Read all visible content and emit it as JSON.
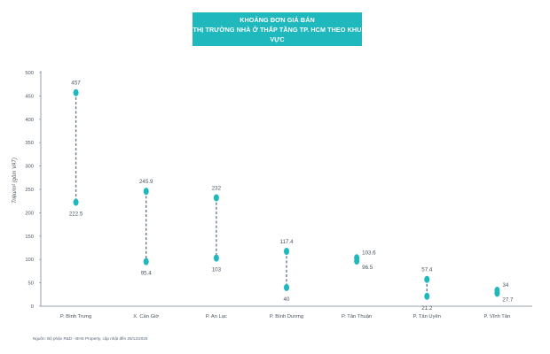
{
  "chart_data": {
    "type": "range-dot",
    "title": "KHOẢNG ĐƠN GIÁ BÁN",
    "subtitle": "THỊ TRƯỜNG NHÀ Ở THẤP TẦNG TP. HCM THEO KHU VỰC",
    "ylabel": "Triệu/m² (gồm VAT)",
    "xlabel": "",
    "ylim": [
      0,
      500
    ],
    "yticks": [
      0,
      50,
      100,
      150,
      200,
      250,
      300,
      350,
      400,
      450,
      500
    ],
    "grid": false,
    "categories": [
      "P. Bình Trưng",
      "X. Cần Giờ",
      "P. An Lạc",
      "P. Bình Dương",
      "P. Tân Thuận",
      "P. Tân Uyên",
      "P. Vĩnh Tân"
    ],
    "series": [
      {
        "values": [
          457,
          245.9,
          232,
          117.4,
          103.6,
          57.4,
          34
        ],
        "labels": [
          "457",
          "245.9",
          "232",
          "117.4",
          "103.6",
          "57.4",
          "34"
        ]
      },
      {
        "values": [
          222.5,
          95.4,
          103,
          40,
          96.5,
          21.2,
          27.7
        ],
        "labels": [
          "222.5",
          "95.4",
          "103",
          "40",
          "96.5",
          "21.2",
          "27.7"
        ]
      }
    ],
    "source": "Nguồn: Bộ phận R&D - BHS Property, cập nhật đến 26/12/2025",
    "colors": {
      "dot": "#1fb8bd",
      "connector": "#6b7b8c",
      "axis": "#7a8794",
      "text": "#4a5560",
      "title_bg": "#1fb8bd"
    }
  }
}
